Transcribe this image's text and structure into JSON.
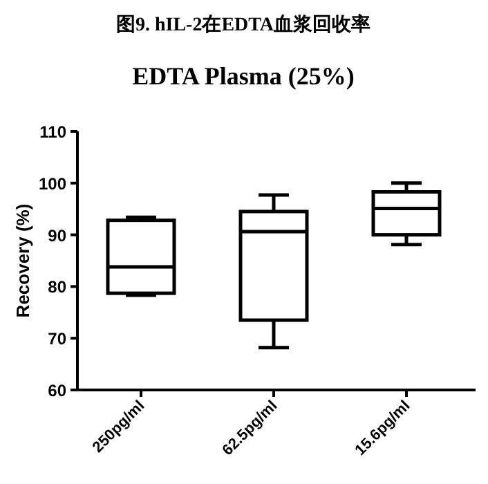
{
  "chart_data": {
    "type": "box",
    "title": "图9. hIL-2在EDTA血浆回收率",
    "subtitle": "EDTA Plasma (25%)",
    "ylabel": "Recovery (%)",
    "categories": [
      "250pg/ml",
      "62.5pg/ml",
      "15.6pg/ml"
    ],
    "boxes": [
      {
        "low": 78.3,
        "q1": 78.7,
        "median": 83.8,
        "q3": 92.8,
        "high": 93.4
      },
      {
        "low": 68.2,
        "q1": 73.5,
        "median": 90.6,
        "q3": 94.5,
        "high": 97.7
      },
      {
        "low": 88.1,
        "q1": 90.0,
        "median": 95.1,
        "q3": 98.3,
        "high": 100.0
      }
    ],
    "ylim": [
      60,
      110
    ],
    "yticks": [
      60,
      70,
      80,
      90,
      100,
      110
    ],
    "grid": false
  }
}
